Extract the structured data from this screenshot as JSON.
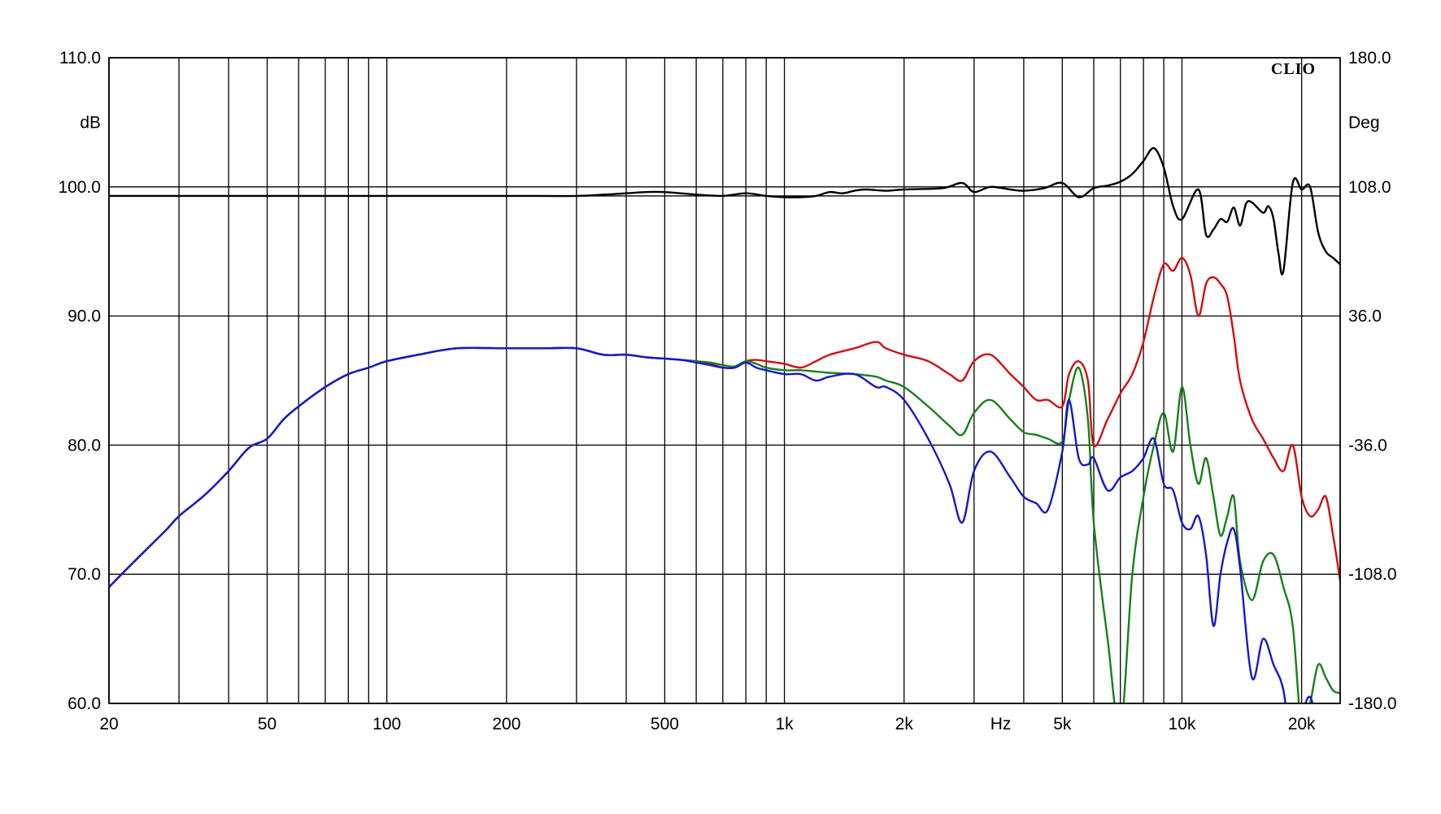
{
  "chart_data": {
    "type": "line",
    "brand": "CLIO",
    "xscale": "log",
    "xlim": [
      20,
      25000
    ],
    "ylim": [
      60,
      110
    ],
    "y2lim": [
      -180,
      180
    ],
    "grid": true,
    "xlabel": "Hz",
    "ylabel": "dB",
    "y2label": "Deg",
    "x_ticks": [
      {
        "value": 20,
        "label": "20"
      },
      {
        "value": 50,
        "label": "50"
      },
      {
        "value": 100,
        "label": "100"
      },
      {
        "value": 200,
        "label": "200"
      },
      {
        "value": 500,
        "label": "500"
      },
      {
        "value": 1000,
        "label": "1k"
      },
      {
        "value": 2000,
        "label": "2k"
      },
      {
        "value": 5000,
        "label": "5k"
      },
      {
        "value": 10000,
        "label": "10k"
      },
      {
        "value": 20000,
        "label": "20k"
      }
    ],
    "x_gridlines": [
      20,
      30,
      40,
      50,
      60,
      70,
      80,
      90,
      100,
      200,
      300,
      400,
      500,
      600,
      700,
      800,
      900,
      1000,
      2000,
      3000,
      4000,
      5000,
      6000,
      7000,
      8000,
      9000,
      10000,
      20000
    ],
    "y_ticks": [
      {
        "value": 60,
        "label": "60.0"
      },
      {
        "value": 70,
        "label": "70.0"
      },
      {
        "value": 80,
        "label": "80.0"
      },
      {
        "value": 90,
        "label": "90.0"
      },
      {
        "value": 100,
        "label": "100.0"
      },
      {
        "value": 110,
        "label": "110.0"
      }
    ],
    "y_gridlines": [
      60,
      70,
      80,
      90,
      100,
      110
    ],
    "y2_ticks": [
      {
        "value": -180,
        "label": "-180.0"
      },
      {
        "value": -108,
        "label": "-108.0"
      },
      {
        "value": -36,
        "label": "-36.0"
      },
      {
        "value": 36,
        "label": "36.0"
      },
      {
        "value": 108,
        "label": "108.0"
      },
      {
        "value": 180,
        "label": "180.0"
      }
    ],
    "series": [
      {
        "color": "#000000",
        "axis": "y",
        "x": [
          20,
          100,
          200,
          300,
          350,
          400,
          450,
          500,
          600,
          700,
          800,
          900,
          1000,
          1100,
          1200,
          1300,
          1400,
          1500,
          1600,
          1800,
          2000,
          2500,
          2800,
          3000,
          3300,
          3700,
          4000,
          4500,
          5000,
          5500,
          6000,
          6500,
          7000,
          7500,
          8000,
          8500,
          9000,
          9500,
          10000,
          11000,
          11500,
          12000,
          12500,
          13000,
          13500,
          14000,
          14500,
          15000,
          16000,
          16500,
          17000,
          17500,
          18000,
          19000,
          20000,
          21000,
          22000,
          23000,
          24000,
          25000
        ],
        "values": [
          99.3,
          99.3,
          99.3,
          99.3,
          99.4,
          99.5,
          99.6,
          99.6,
          99.4,
          99.3,
          99.5,
          99.3,
          99.2,
          99.2,
          99.3,
          99.6,
          99.5,
          99.7,
          99.8,
          99.7,
          99.8,
          99.9,
          100.3,
          99.6,
          100.0,
          99.8,
          99.7,
          99.9,
          100.3,
          99.2,
          99.9,
          100.1,
          100.4,
          101.0,
          102.0,
          103.0,
          101.5,
          98.5,
          97.5,
          99.8,
          96.3,
          96.7,
          97.5,
          97.3,
          98.4,
          97.0,
          98.7,
          98.8,
          98.0,
          98.5,
          97.5,
          94.8,
          93.5,
          100.3,
          99.8,
          100.0,
          96.5,
          95.0,
          94.5,
          94.0
        ]
      },
      {
        "color": "#d01010",
        "axis": "y",
        "x": [
          20,
          22,
          25,
          28,
          30,
          35,
          40,
          45,
          50,
          55,
          60,
          70,
          80,
          90,
          100,
          120,
          150,
          200,
          250,
          300,
          350,
          400,
          450,
          500,
          550,
          600,
          650,
          700,
          750,
          800,
          850,
          900,
          1000,
          1100,
          1200,
          1300,
          1500,
          1700,
          1800,
          2000,
          2300,
          2600,
          2800,
          3000,
          3300,
          3700,
          4000,
          4300,
          4600,
          5000,
          5200,
          5500,
          5800,
          6000,
          6500,
          7000,
          7500,
          8000,
          8500,
          9000,
          9500,
          10000,
          10500,
          11000,
          11500,
          12000,
          12500,
          13000,
          13500,
          14000,
          15000,
          16000,
          17000,
          18000,
          19000,
          20000,
          21000,
          22000,
          23000,
          24000,
          25000
        ],
        "values": [
          69.0,
          70.3,
          72.0,
          73.5,
          74.5,
          76.2,
          78.0,
          79.8,
          80.5,
          82.0,
          83.0,
          84.5,
          85.5,
          86.0,
          86.5,
          87.0,
          87.5,
          87.5,
          87.5,
          87.5,
          87.0,
          87.0,
          86.8,
          86.7,
          86.6,
          86.5,
          86.3,
          86.0,
          86.0,
          86.5,
          86.6,
          86.5,
          86.3,
          86.0,
          86.5,
          87.0,
          87.5,
          88.0,
          87.5,
          87.0,
          86.5,
          85.5,
          85.0,
          86.5,
          87.0,
          85.5,
          84.5,
          83.5,
          83.5,
          83.0,
          85.5,
          86.5,
          85.0,
          80.0,
          82.0,
          84.0,
          85.5,
          88.0,
          91.5,
          94.0,
          93.5,
          94.5,
          93.2,
          90.0,
          92.5,
          93.0,
          92.5,
          91.5,
          88.5,
          85.0,
          82.0,
          80.5,
          79.0,
          78.0,
          80.0,
          76.0,
          74.5,
          75.0,
          76.0,
          73.0,
          69.5
        ]
      },
      {
        "color": "#18801a",
        "axis": "y",
        "x": [
          20,
          22,
          25,
          28,
          30,
          35,
          40,
          45,
          50,
          55,
          60,
          70,
          80,
          90,
          100,
          120,
          150,
          200,
          250,
          300,
          350,
          400,
          450,
          500,
          550,
          600,
          650,
          700,
          750,
          800,
          850,
          900,
          1000,
          1100,
          1200,
          1300,
          1500,
          1700,
          1800,
          2000,
          2300,
          2600,
          2800,
          3000,
          3300,
          3700,
          4000,
          4300,
          4600,
          5000,
          5200,
          5500,
          5800,
          6000,
          6500,
          7000,
          7500,
          8000,
          8500,
          9000,
          9500,
          10000,
          10500,
          11000,
          11500,
          12000,
          12500,
          13000,
          13500,
          14000,
          15000,
          16000,
          17000,
          18000,
          19000,
          20000,
          21000,
          22000,
          23000,
          24000,
          25000
        ],
        "values": [
          69.0,
          70.3,
          72.0,
          73.5,
          74.5,
          76.2,
          78.0,
          79.8,
          80.5,
          82.0,
          83.0,
          84.5,
          85.5,
          86.0,
          86.5,
          87.0,
          87.5,
          87.5,
          87.5,
          87.5,
          87.0,
          87.0,
          86.8,
          86.7,
          86.6,
          86.5,
          86.4,
          86.2,
          86.1,
          86.5,
          86.3,
          86.0,
          85.8,
          85.8,
          85.7,
          85.6,
          85.5,
          85.3,
          85.0,
          84.5,
          83.0,
          81.5,
          80.8,
          82.5,
          83.5,
          82.0,
          81.0,
          80.8,
          80.5,
          80.3,
          83.5,
          86.0,
          82.0,
          74.0,
          65.0,
          58.0,
          70.0,
          76.0,
          80.0,
          82.5,
          79.5,
          84.5,
          80.0,
          77.0,
          79.0,
          76.0,
          73.0,
          74.5,
          76.0,
          71.0,
          68.0,
          71.0,
          71.5,
          69.0,
          66.0,
          58.0,
          60.0,
          63.0,
          62.0,
          61.0,
          60.8
        ]
      },
      {
        "color": "#1818c8",
        "axis": "y",
        "x": [
          20,
          22,
          25,
          28,
          30,
          35,
          40,
          45,
          50,
          55,
          60,
          70,
          80,
          90,
          100,
          120,
          150,
          200,
          250,
          300,
          350,
          400,
          450,
          500,
          550,
          600,
          650,
          700,
          750,
          800,
          850,
          900,
          1000,
          1100,
          1200,
          1300,
          1500,
          1700,
          1800,
          2000,
          2300,
          2600,
          2800,
          3000,
          3300,
          3700,
          4000,
          4300,
          4600,
          5000,
          5200,
          5500,
          5800,
          6000,
          6500,
          7000,
          7500,
          8000,
          8500,
          9000,
          9500,
          10000,
          10500,
          11000,
          11500,
          12000,
          12500,
          13000,
          13500,
          14000,
          15000,
          16000,
          17000,
          18000,
          19000,
          20000,
          21000,
          22000,
          23000,
          24000,
          25000
        ],
        "values": [
          69.0,
          70.3,
          72.0,
          73.5,
          74.5,
          76.2,
          78.0,
          79.8,
          80.5,
          82.0,
          83.0,
          84.5,
          85.5,
          86.0,
          86.5,
          87.0,
          87.5,
          87.5,
          87.5,
          87.5,
          87.0,
          87.0,
          86.8,
          86.7,
          86.6,
          86.4,
          86.2,
          86.0,
          86.0,
          86.4,
          86.0,
          85.8,
          85.5,
          85.5,
          85.0,
          85.3,
          85.5,
          84.5,
          84.5,
          83.5,
          80.5,
          77.0,
          74.0,
          78.0,
          79.5,
          77.5,
          76.0,
          75.5,
          75.0,
          79.5,
          83.5,
          79.0,
          78.5,
          79.0,
          76.5,
          77.5,
          78.0,
          79.0,
          80.5,
          77.0,
          76.5,
          74.0,
          73.5,
          74.5,
          71.5,
          66.0,
          70.0,
          72.5,
          73.5,
          70.5,
          62.0,
          65.0,
          63.0,
          61.0,
          56.0,
          59.0,
          60.5,
          58.0,
          57.0,
          56.0,
          55.0
        ]
      }
    ]
  }
}
